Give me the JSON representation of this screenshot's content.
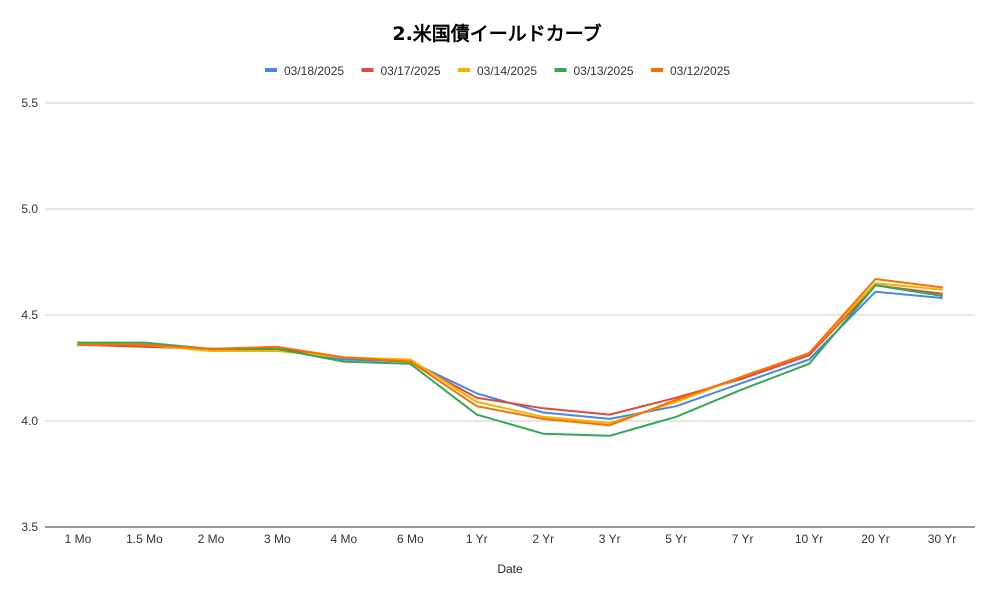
{
  "chart_data": {
    "type": "line",
    "title": "2.米国債イールドカーブ",
    "xlabel": "Date",
    "ylabel": "",
    "ylim": [
      3.5,
      5.5
    ],
    "yticks": [
      "3.5",
      "4.0",
      "4.5",
      "5.0",
      "5.5"
    ],
    "grid": true,
    "legend_position": "top",
    "categories": [
      "1 Mo",
      "1.5 Mo",
      "2 Mo",
      "3 Mo",
      "4 Mo",
      "6 Mo",
      "1 Yr",
      "2 Yr",
      "3 Yr",
      "5 Yr",
      "7 Yr",
      "10 Yr",
      "20 Yr",
      "30 Yr"
    ],
    "series": [
      {
        "name": "03/18/2025",
        "color": "#4a86e8",
        "values": [
          4.36,
          4.36,
          4.34,
          4.34,
          4.29,
          4.28,
          4.13,
          4.04,
          4.01,
          4.07,
          4.18,
          4.29,
          4.61,
          4.58
        ]
      },
      {
        "name": "03/17/2025",
        "color": "#dd4b39",
        "values": [
          4.36,
          4.35,
          4.34,
          4.34,
          4.3,
          4.28,
          4.11,
          4.06,
          4.03,
          4.11,
          4.2,
          4.31,
          4.64,
          4.6
        ]
      },
      {
        "name": "03/14/2025",
        "color": "#f1b300",
        "values": [
          4.37,
          4.36,
          4.33,
          4.33,
          4.3,
          4.29,
          4.09,
          4.02,
          3.99,
          4.09,
          4.21,
          4.32,
          4.65,
          4.62
        ]
      },
      {
        "name": "03/13/2025",
        "color": "#34a853",
        "values": [
          4.37,
          4.37,
          4.34,
          4.34,
          4.28,
          4.27,
          4.03,
          3.94,
          3.93,
          4.02,
          4.15,
          4.27,
          4.64,
          4.59
        ]
      },
      {
        "name": "03/12/2025",
        "color": "#ff6d00",
        "values": [
          4.36,
          4.36,
          4.34,
          4.35,
          4.3,
          4.28,
          4.07,
          4.01,
          3.98,
          4.1,
          4.21,
          4.32,
          4.67,
          4.63
        ]
      }
    ]
  }
}
